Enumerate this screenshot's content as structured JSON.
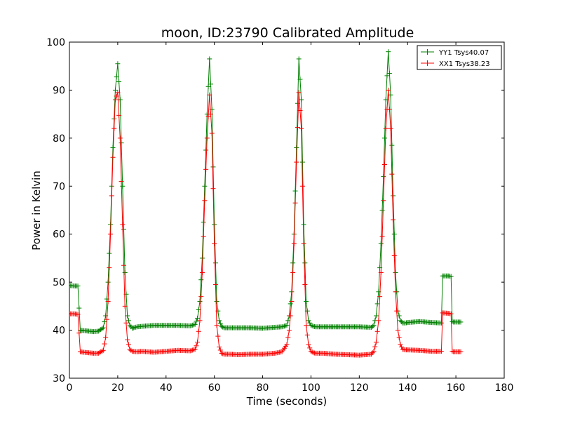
{
  "chart_data": {
    "type": "line",
    "title": "moon, ID:23790 Calibrated Amplitude",
    "xlabel": "Time (seconds)",
    "ylabel": "Power in Kelvin",
    "xlim": [
      0,
      180
    ],
    "ylim": [
      30,
      100
    ],
    "xticks": [
      0,
      20,
      40,
      60,
      80,
      100,
      120,
      140,
      160,
      180
    ],
    "yticks": [
      30,
      40,
      50,
      60,
      70,
      80,
      90,
      100
    ],
    "grid": false,
    "legend_position": "top-right",
    "series": [
      {
        "name": "YY1 Tsys40.07",
        "color": "#008000",
        "marker": "+",
        "x": [
          0,
          2,
          3.5,
          4.5,
          6,
          8,
          10,
          12,
          14,
          15,
          16,
          17,
          18,
          19,
          20,
          21,
          22,
          23,
          24,
          25,
          26,
          28,
          30,
          35,
          40,
          45,
          50,
          52,
          53,
          54,
          55,
          56,
          57,
          58,
          59,
          60,
          61,
          62,
          63,
          64,
          66,
          70,
          75,
          80,
          85,
          88,
          90,
          91,
          92,
          93,
          94,
          95,
          96,
          97,
          98,
          99,
          100,
          101,
          102,
          105,
          110,
          115,
          120,
          125,
          126,
          127,
          128,
          129,
          130,
          131,
          132,
          133,
          134,
          135,
          136,
          137,
          138,
          139,
          140,
          145,
          150,
          154,
          154.5,
          155,
          157,
          158,
          158.5,
          159,
          160,
          162
        ],
        "y": [
          49.3,
          49.2,
          49.2,
          40,
          39.9,
          39.8,
          39.7,
          39.8,
          40.5,
          43,
          50,
          62,
          78,
          90,
          95.5,
          88,
          70,
          52,
          43,
          41,
          40.4,
          40.7,
          40.8,
          41,
          41,
          41,
          40.9,
          41.2,
          42.5,
          46,
          55,
          70,
          85,
          96.5,
          86,
          62,
          46,
          42,
          40.8,
          40.5,
          40.5,
          40.5,
          40.5,
          40.4,
          40.6,
          40.7,
          41,
          43,
          48,
          60,
          78,
          96.5,
          88,
          62,
          46,
          42,
          41,
          40.8,
          40.7,
          40.7,
          40.7,
          40.7,
          40.7,
          40.6,
          41,
          43,
          48,
          58,
          72,
          88,
          98,
          89,
          68,
          52,
          44,
          42,
          41.5,
          41.5,
          41.6,
          41.8,
          41.6,
          41.5,
          51.3,
          51.3,
          51.3,
          51.2,
          41.8,
          41.7,
          41.7,
          41.7
        ]
      },
      {
        "name": "XX1 Tsys38.23",
        "color": "#ff0000",
        "marker": "+",
        "x": [
          0,
          2,
          3.5,
          4.5,
          6,
          8,
          10,
          12,
          14,
          15,
          16,
          17,
          18,
          19,
          20,
          21,
          22,
          23,
          24,
          25,
          26,
          28,
          30,
          35,
          40,
          45,
          50,
          52,
          53,
          54,
          55,
          56,
          57,
          58,
          59,
          60,
          61,
          62,
          63,
          64,
          66,
          70,
          75,
          80,
          85,
          88,
          90,
          91,
          92,
          93,
          94,
          95,
          96,
          97,
          98,
          99,
          100,
          101,
          102,
          105,
          110,
          115,
          120,
          125,
          126,
          127,
          128,
          129,
          130,
          131,
          132,
          133,
          134,
          135,
          136,
          137,
          138,
          139,
          140,
          145,
          150,
          154,
          154.5,
          155,
          157,
          158,
          158.5,
          159,
          160,
          162
        ],
        "y": [
          43.4,
          43.4,
          43.3,
          35.5,
          35.4,
          35.3,
          35.2,
          35.2,
          35.8,
          38.5,
          46,
          60,
          76,
          88,
          89.5,
          80,
          62,
          45,
          38,
          36,
          35.6,
          35.5,
          35.6,
          35.4,
          35.6,
          35.8,
          35.7,
          36,
          37.5,
          42,
          52,
          67,
          80,
          89,
          81,
          58,
          41,
          36.5,
          35.2,
          35,
          35,
          34.9,
          35,
          35,
          35.2,
          35.5,
          37,
          40,
          46,
          58,
          75,
          89.5,
          82,
          58,
          41,
          37,
          35.6,
          35.3,
          35.2,
          35.2,
          35,
          34.9,
          34.8,
          35,
          35.6,
          37.5,
          42,
          52,
          67,
          82,
          90,
          82,
          63,
          48,
          40,
          37,
          36,
          35.9,
          35.9,
          35.8,
          35.6,
          35.6,
          43.6,
          43.6,
          43.5,
          43.4,
          35.6,
          35.5,
          35.5,
          35.5
        ]
      }
    ]
  }
}
